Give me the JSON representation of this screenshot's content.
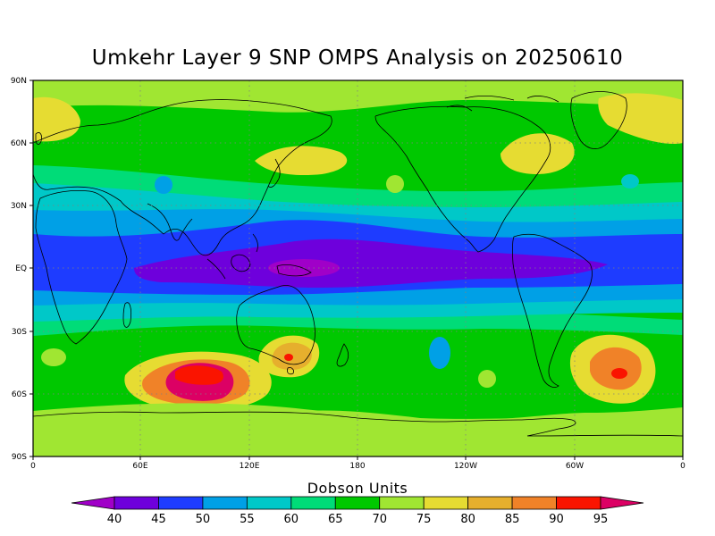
{
  "title": "Umkehr Layer 9 SNP OMPS Analysis on 20250610",
  "colorbar": {
    "title": "Dobson Units",
    "ticks": [
      "40",
      "45",
      "50",
      "55",
      "60",
      "65",
      "70",
      "75",
      "80",
      "85",
      "90",
      "95"
    ],
    "colors": [
      "#a000c8",
      "#6e00dc",
      "#1e3cff",
      "#00a0e6",
      "#00c8c8",
      "#00dc78",
      "#00c800",
      "#a0e632",
      "#e6dc32",
      "#e6af2d",
      "#f08228",
      "#fa1400",
      "#dc0064"
    ]
  },
  "axes": {
    "x_labels": [
      "0",
      "60E",
      "120E",
      "180",
      "120W",
      "60W",
      "0"
    ],
    "y_labels": [
      "90N",
      "60N",
      "30N",
      "EQ",
      "30S",
      "60S",
      "90S"
    ]
  },
  "chart_data": {
    "type": "heatmap",
    "title": "Umkehr Layer 9 SNP OMPS Analysis on 20250610",
    "units": "Dobson Units",
    "levels": [
      40,
      45,
      50,
      55,
      60,
      65,
      70,
      75,
      80,
      85,
      90,
      95
    ],
    "regions": [
      {
        "name": "tropical band",
        "lat": [
          -10,
          10
        ],
        "value": 45
      },
      {
        "name": "subtropical belts",
        "lat_abs": [
          15,
          30
        ],
        "value": 55
      },
      {
        "name": "southern Indian Ocean maximum",
        "lon": 95,
        "lat": -52,
        "value": 95
      },
      {
        "name": "SE Australia maximum",
        "lon": 145,
        "lat": -42,
        "value": 90
      },
      {
        "name": "South Atlantic maximum",
        "lon": -30,
        "lat": -48,
        "value": 90
      },
      {
        "name": "North Pacific high",
        "lon": 165,
        "lat": 55,
        "value": 75
      },
      {
        "name": "Greenland / N Atlantic high",
        "lon": -45,
        "lat": 70,
        "value": 75
      },
      {
        "name": "Antarctic",
        "lat": [
          -90,
          -75
        ],
        "value": 75
      }
    ]
  }
}
